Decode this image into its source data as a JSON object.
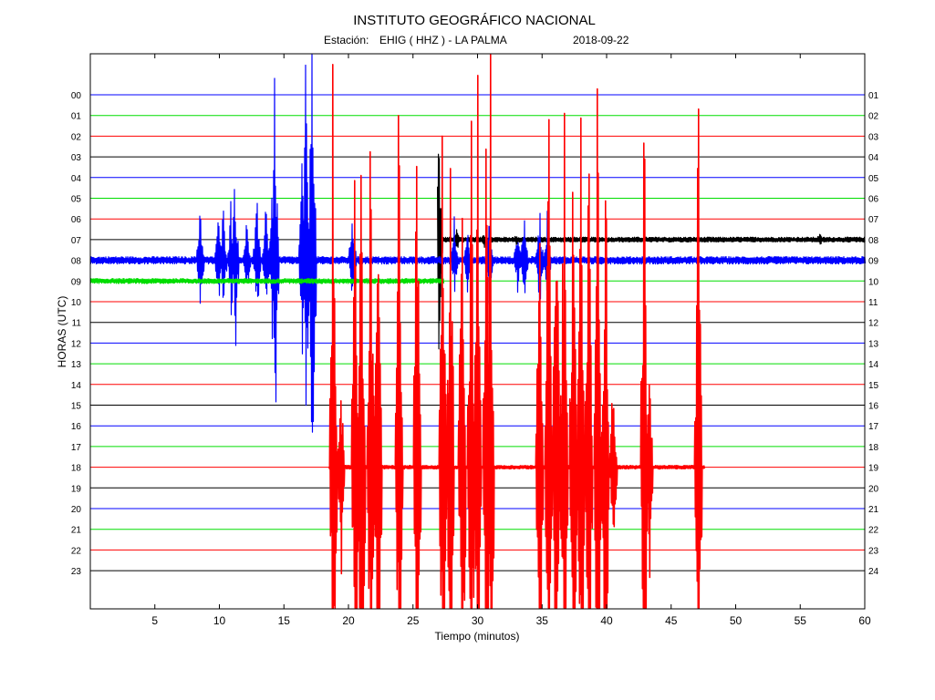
{
  "title": "INSTITUTO GEOGRÁFICO NACIONAL",
  "subtitle": {
    "station_label": "Estación:",
    "station": "EHIG ( HHZ ) - LA PALMA",
    "date": "2018-09-22"
  },
  "colors": {
    "blue": "#0000ff",
    "green": "#00dd00",
    "red": "#ff0000",
    "black": "#000000",
    "background": "#ffffff"
  },
  "chart_data": {
    "type": "line",
    "xlabel": "Tiempo (minutos)",
    "ylabel": "HORAS (UTC)",
    "xlim": [
      0,
      60
    ],
    "x_ticks": [
      5,
      10,
      15,
      20,
      25,
      30,
      35,
      40,
      45,
      50,
      55,
      60
    ],
    "grid": false,
    "rows": [
      {
        "left": "00",
        "right": "01",
        "color": "blue"
      },
      {
        "left": "01",
        "right": "02",
        "color": "green"
      },
      {
        "left": "02",
        "right": "03",
        "color": "red"
      },
      {
        "left": "03",
        "right": "04",
        "color": "black"
      },
      {
        "left": "04",
        "right": "05",
        "color": "blue"
      },
      {
        "left": "05",
        "right": "06",
        "color": "green"
      },
      {
        "left": "06",
        "right": "07",
        "color": "red"
      },
      {
        "left": "07",
        "right": "08",
        "color": "black"
      },
      {
        "left": "08",
        "right": "09",
        "color": "blue"
      },
      {
        "left": "09",
        "right": "10",
        "color": "green"
      },
      {
        "left": "10",
        "right": "11",
        "color": "red"
      },
      {
        "left": "11",
        "right": "12",
        "color": "black"
      },
      {
        "left": "12",
        "right": "13",
        "color": "blue"
      },
      {
        "left": "13",
        "right": "14",
        "color": "green"
      },
      {
        "left": "14",
        "right": "15",
        "color": "red"
      },
      {
        "left": "15",
        "right": "16",
        "color": "black"
      },
      {
        "left": "16",
        "right": "17",
        "color": "blue"
      },
      {
        "left": "17",
        "right": "18",
        "color": "green"
      },
      {
        "left": "18",
        "right": "19",
        "color": "red"
      },
      {
        "left": "19",
        "right": "20",
        "color": "black"
      },
      {
        "left": "20",
        "right": "21",
        "color": "blue"
      },
      {
        "left": "21",
        "right": "22",
        "color": "green"
      },
      {
        "left": "22",
        "right": "23",
        "color": "red"
      },
      {
        "left": "23",
        "right": "24",
        "color": "black"
      }
    ],
    "traces": [
      {
        "row": 7,
        "color": "black",
        "start": 26.9,
        "end": 60,
        "noise": 0.12,
        "events": [
          {
            "t": 27.0,
            "amp": 6.5
          },
          {
            "t": 28.4,
            "amp": 0.6
          },
          {
            "t": 30.5,
            "amp": 0.4
          },
          {
            "t": 33.0,
            "amp": 0.3
          },
          {
            "t": 56.5,
            "amp": 0.4
          }
        ]
      },
      {
        "row": 8,
        "color": "blue",
        "start": 0,
        "end": 60,
        "noise": 0.18,
        "events": [
          {
            "t": 8.5,
            "amp": 3.5
          },
          {
            "t": 9.9,
            "amp": 2.8
          },
          {
            "t": 10.3,
            "amp": 3.0
          },
          {
            "t": 10.9,
            "amp": 3.4
          },
          {
            "t": 11.2,
            "amp": 5.5
          },
          {
            "t": 12.1,
            "amp": 2.4
          },
          {
            "t": 12.9,
            "amp": 3.5
          },
          {
            "t": 13.6,
            "amp": 3.6
          },
          {
            "t": 14.1,
            "amp": 5.0
          },
          {
            "t": 14.3,
            "amp": 10.5
          },
          {
            "t": 16.4,
            "amp": 5.5
          },
          {
            "t": 16.7,
            "amp": 11.0
          },
          {
            "t": 17.2,
            "amp": 18.0
          },
          {
            "t": 20.3,
            "amp": 3.0
          },
          {
            "t": 28.2,
            "amp": 2.2
          },
          {
            "t": 29.2,
            "amp": 2.0
          },
          {
            "t": 30.9,
            "amp": 2.5
          },
          {
            "t": 33.1,
            "amp": 2.0
          },
          {
            "t": 33.6,
            "amp": 3.0
          },
          {
            "t": 34.8,
            "amp": 3.2
          },
          {
            "t": 35.4,
            "amp": 2.5
          }
        ]
      },
      {
        "row": 9,
        "color": "green",
        "start": 0,
        "end": 27.4,
        "noise": 0.12,
        "events": []
      },
      {
        "row": 18,
        "color": "red",
        "start": 18.5,
        "end": 47.6,
        "noise": 0.08,
        "events": [
          {
            "t": 18.8,
            "amp": 22.0
          },
          {
            "t": 19.4,
            "amp": 7.0
          },
          {
            "t": 20.5,
            "amp": 22.0
          },
          {
            "t": 21.0,
            "amp": 22.0
          },
          {
            "t": 21.7,
            "amp": 22.0
          },
          {
            "t": 22.3,
            "amp": 22.0
          },
          {
            "t": 23.9,
            "amp": 22.0
          },
          {
            "t": 25.3,
            "amp": 22.0
          },
          {
            "t": 27.3,
            "amp": 22.0
          },
          {
            "t": 27.9,
            "amp": 22.0
          },
          {
            "t": 28.8,
            "amp": 22.0
          },
          {
            "t": 29.5,
            "amp": 22.0
          },
          {
            "t": 30.0,
            "amp": 22.0
          },
          {
            "t": 30.7,
            "amp": 22.0
          },
          {
            "t": 31.0,
            "amp": 22.0
          },
          {
            "t": 34.8,
            "amp": 22.0
          },
          {
            "t": 35.5,
            "amp": 22.0
          },
          {
            "t": 36.1,
            "amp": 22.0
          },
          {
            "t": 36.7,
            "amp": 22.0
          },
          {
            "t": 37.4,
            "amp": 22.0
          },
          {
            "t": 38.0,
            "amp": 22.0
          },
          {
            "t": 38.6,
            "amp": 22.0
          },
          {
            "t": 39.3,
            "amp": 22.0
          },
          {
            "t": 39.9,
            "amp": 22.0
          },
          {
            "t": 40.5,
            "amp": 6.0
          },
          {
            "t": 42.9,
            "amp": 22.0
          },
          {
            "t": 43.3,
            "amp": 7.0
          },
          {
            "t": 47.1,
            "amp": 22.0
          }
        ]
      }
    ]
  }
}
